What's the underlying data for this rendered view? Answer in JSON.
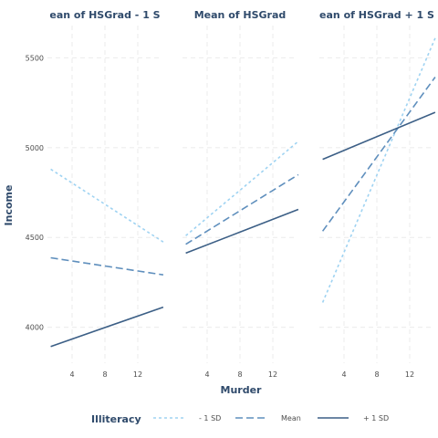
{
  "chart_data": {
    "type": "line",
    "xlabel": "Murder",
    "ylabel": "Income",
    "xlim": [
      1,
      15
    ],
    "ylim": [
      3800,
      5680
    ],
    "x_ticks": [
      4,
      8,
      12
    ],
    "y_ticks": [
      4000,
      4500,
      5000,
      5500
    ],
    "grid": true,
    "legend_position": "bottom",
    "legend_title": "Illiteracy",
    "series_styles": [
      {
        "name": "- 1 SD",
        "color": "#9fd3f2",
        "dash": "dotted"
      },
      {
        "name": "Mean",
        "color": "#5f8fbd",
        "dash": "dashed"
      },
      {
        "name": "+ 1 SD",
        "color": "#3c5f86",
        "dash": "solid"
      }
    ],
    "panels": [
      {
        "title": "ean of HSGrad - 1 S",
        "series": [
          {
            "name": "- 1 SD",
            "x": [
              1.4,
              15.1
            ],
            "y": [
              4880,
              4475
            ]
          },
          {
            "name": "Mean",
            "x": [
              1.4,
              15.1
            ],
            "y": [
              4387,
              4292
            ]
          },
          {
            "name": "+ 1 SD",
            "x": [
              1.4,
              15.1
            ],
            "y": [
              3893,
              4112
            ]
          }
        ]
      },
      {
        "title": "Mean of HSGrad",
        "series": [
          {
            "name": "- 1 SD",
            "x": [
              1.4,
              15.1
            ],
            "y": [
              4510,
              5035
            ]
          },
          {
            "name": "Mean",
            "x": [
              1.4,
              15.1
            ],
            "y": [
              4462,
              4850
            ]
          },
          {
            "name": "+ 1 SD",
            "x": [
              1.4,
              15.1
            ],
            "y": [
              4413,
              4656
            ]
          }
        ]
      },
      {
        "title": "ean of HSGrad + 1 S",
        "series": [
          {
            "name": "- 1 SD",
            "x": [
              1.4,
              15.1
            ],
            "y": [
              4138,
              5610
            ]
          },
          {
            "name": "Mean",
            "x": [
              1.4,
              15.1
            ],
            "y": [
              4535,
              5393
            ]
          },
          {
            "name": "+ 1 SD",
            "x": [
              1.4,
              15.1
            ],
            "y": [
              4935,
              5197
            ]
          }
        ]
      }
    ]
  }
}
